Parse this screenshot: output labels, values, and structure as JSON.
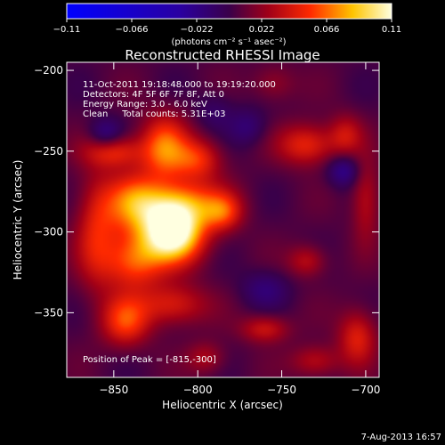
{
  "chart_data": {
    "type": "heatmap",
    "title": "Reconstructed RHESSI Image",
    "xlabel": "Heliocentric X (arcsec)",
    "ylabel": "Heliocentric Y (arcsec)",
    "xlim": [
      -878,
      -692
    ],
    "ylim": [
      -390,
      -195
    ],
    "x_ticks": [
      -850,
      -800,
      -750,
      -700
    ],
    "x_tick_labels": [
      "−850",
      "−800",
      "−750",
      "−700"
    ],
    "y_ticks": [
      -200,
      -250,
      -300,
      -350
    ],
    "y_tick_labels": [
      "−200",
      "−250",
      "−300",
      "−350"
    ],
    "colorbar": {
      "range": [
        -0.11,
        0.11
      ],
      "ticks": [
        -0.11,
        -0.066,
        -0.022,
        0.022,
        0.066,
        0.11
      ],
      "tick_labels": [
        "−0.11",
        "−0.066",
        "−0.022",
        "0.022",
        "0.066",
        "0.11"
      ],
      "units_label": "(photons cm⁻² s⁻¹ asec⁻²)"
    },
    "annotations": [
      "11-Oct-2011 19:18:48.000 to 19:19:20.000",
      "Detectors: 4F 5F 6F 7F 8F, Att 0",
      "Energy Range: 3.0 - 6.0 keV",
      "Clean     Total counts: 5.31E+03"
    ],
    "peak_label": "Position of Peak = [-815,-300]",
    "peak": [
      -815,
      -300
    ],
    "sources": [
      {
        "x": -815,
        "y": -300,
        "v": 0.12,
        "sx": 13,
        "sy": 13
      },
      {
        "x": -808,
        "y": -282,
        "v": 0.05,
        "sx": 18,
        "sy": 10
      },
      {
        "x": -838,
        "y": -282,
        "v": 0.055,
        "sx": 12,
        "sy": 13
      },
      {
        "x": -800,
        "y": -255,
        "v": 0.045,
        "sx": 10,
        "sy": 9
      },
      {
        "x": -820,
        "y": -248,
        "v": 0.06,
        "sx": 10,
        "sy": 14
      },
      {
        "x": -850,
        "y": -250,
        "v": 0.045,
        "sx": 12,
        "sy": 7
      },
      {
        "x": -838,
        "y": -318,
        "v": 0.055,
        "sx": 12,
        "sy": 12
      },
      {
        "x": -843,
        "y": -355,
        "v": 0.05,
        "sx": 10,
        "sy": 11
      },
      {
        "x": -815,
        "y": -345,
        "v": 0.04,
        "sx": 14,
        "sy": 9
      },
      {
        "x": -860,
        "y": -300,
        "v": 0.04,
        "sx": 9,
        "sy": 25
      },
      {
        "x": -785,
        "y": -288,
        "v": 0.04,
        "sx": 8,
        "sy": 8
      },
      {
        "x": -735,
        "y": -246,
        "v": 0.045,
        "sx": 12,
        "sy": 9
      },
      {
        "x": -760,
        "y": -360,
        "v": 0.035,
        "sx": 10,
        "sy": 6
      },
      {
        "x": -735,
        "y": -318,
        "v": 0.03,
        "sx": 8,
        "sy": 7
      },
      {
        "x": -712,
        "y": -240,
        "v": 0.03,
        "sx": 7,
        "sy": 9
      },
      {
        "x": -700,
        "y": -280,
        "v": 0.03,
        "sx": 6,
        "sy": 18
      },
      {
        "x": -705,
        "y": -365,
        "v": 0.04,
        "sx": 8,
        "sy": 12
      },
      {
        "x": -730,
        "y": -380,
        "v": 0.03,
        "sx": 10,
        "sy": 7
      },
      {
        "x": -755,
        "y": -208,
        "v": 0.02,
        "sx": 9,
        "sy": 8
      },
      {
        "x": -795,
        "y": -378,
        "v": 0.025,
        "sx": 8,
        "sy": 7
      },
      {
        "x": -855,
        "y": -240,
        "v": -0.03,
        "sx": 7,
        "sy": 7
      },
      {
        "x": -713,
        "y": -262,
        "v": -0.03,
        "sx": 7,
        "sy": 7
      },
      {
        "x": -770,
        "y": -235,
        "v": -0.02,
        "sx": 8,
        "sy": 8
      },
      {
        "x": -760,
        "y": -335,
        "v": -0.02,
        "sx": 10,
        "sy": 8
      },
      {
        "x": -790,
        "y": -225,
        "v": -0.015,
        "sx": 8,
        "sy": 8
      }
    ]
  },
  "footer": {
    "date": "7-Aug-2013 16:57"
  }
}
